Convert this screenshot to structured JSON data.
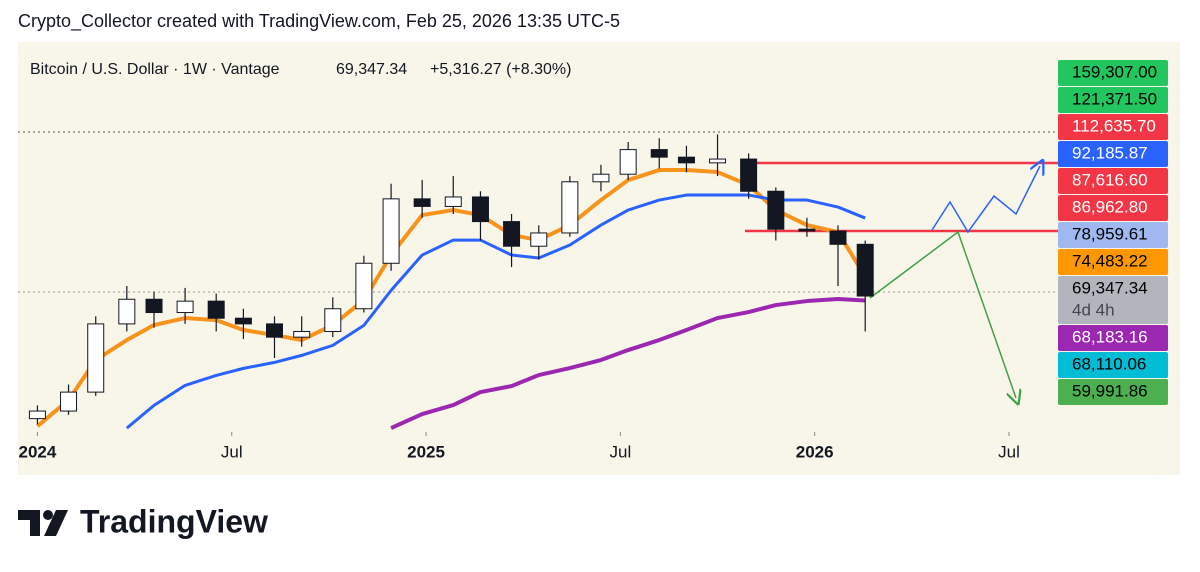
{
  "chart_data": {
    "type": "candlestick",
    "credit": "Crypto_Collector created with TradingView.com, Feb 25, 2026 13:35 UTC-5",
    "title": "Bitcoin / U.S. Dollar · 1W · Vantage",
    "last_price": "69,347.34",
    "change": "+5,316.27 (+8.30%)",
    "brand": "TradingView",
    "x": [
      2024.0,
      2024.08,
      2024.15,
      2024.23,
      2024.3,
      2024.38,
      2024.46,
      2024.53,
      2024.61,
      2024.68,
      2024.76,
      2024.84,
      2024.91,
      2024.99,
      2025.07,
      2025.14,
      2025.22,
      2025.29,
      2025.37,
      2025.45,
      2025.52,
      2025.6,
      2025.67,
      2025.75,
      2025.83,
      2025.9,
      2025.98,
      2026.06,
      2026.13
    ],
    "open": [
      37000,
      39000,
      44000,
      62000,
      68500,
      65000,
      68000,
      63500,
      62000,
      58500,
      60000,
      66000,
      78000,
      95000,
      93000,
      95500,
      89000,
      82500,
      86000,
      99500,
      101500,
      108000,
      106000,
      104500,
      105500,
      97000,
      87000,
      86500,
      83000
    ],
    "high": [
      40500,
      46000,
      64000,
      72000,
      70500,
      71500,
      70000,
      66000,
      64000,
      64000,
      69000,
      80000,
      99000,
      100000,
      101000,
      97000,
      91000,
      88000,
      101000,
      104000,
      110000,
      111000,
      109000,
      112000,
      107000,
      98000,
      90000,
      88000,
      84000
    ],
    "low": [
      35500,
      38000,
      43000,
      60000,
      61000,
      62000,
      60000,
      58000,
      53000,
      56000,
      58500,
      65000,
      76000,
      90000,
      91000,
      84000,
      77000,
      79000,
      85000,
      97000,
      100000,
      103000,
      102000,
      101000,
      95000,
      84000,
      85000,
      72000,
      60000
    ],
    "close": [
      39000,
      44000,
      62000,
      68500,
      65000,
      68000,
      63500,
      62000,
      58500,
      60000,
      66000,
      78000,
      95000,
      93000,
      95500,
      89000,
      82500,
      86000,
      99500,
      101500,
      108000,
      106000,
      104500,
      105500,
      97000,
      87000,
      86500,
      83000,
      69347.34
    ],
    "series": [
      {
        "color": "#f7931a",
        "values": [
          35000,
          41900,
          52460,
          57740,
          61700,
          63540,
          63010,
          60380,
          59060,
          57740,
          61700,
          68290,
          80170,
          90720,
          92040,
          90720,
          85440,
          84120,
          88080,
          94680,
          99960,
          102600,
          102600,
          102070,
          98640,
          92040,
          88080,
          86240,
          74483
        ]
      },
      {
        "color": "#2962ff",
        "values": [
          null,
          null,
          null,
          34500,
          40500,
          45770,
          48410,
          50260,
          51840,
          53690,
          56330,
          61610,
          70850,
          80170,
          84120,
          84120,
          80170,
          79380,
          82810,
          88080,
          92040,
          94680,
          96000,
          96000,
          96000,
          94680,
          94680,
          92830,
          89930
        ]
      },
      {
        "color": "#9c27b0",
        "values": [
          null,
          null,
          null,
          null,
          null,
          null,
          null,
          null,
          null,
          null,
          null,
          null,
          34500,
          38210,
          40580,
          44010,
          45600,
          48500,
          50350,
          52460,
          55100,
          57740,
          60380,
          63540,
          65120,
          66970,
          68030,
          68560,
          68183
        ]
      }
    ],
    "up_color": "#ffffff",
    "down_color": "#131722",
    "xlim": [
      2023.95,
      2026.94
    ],
    "ylim": [
      34000,
      135600
    ],
    "xticks": [
      {
        "value": 2024,
        "label": "2024"
      },
      {
        "value": 2024.5,
        "label": "Jul"
      },
      {
        "value": 2025,
        "label": "2025"
      },
      {
        "value": 2025.5,
        "label": "Jul"
      },
      {
        "value": 2026,
        "label": "2026"
      },
      {
        "value": 2026.5,
        "label": "Jul"
      }
    ],
    "price_labels": [
      {
        "label": "159,307.00",
        "color": "#22c55e",
        "text_color": "#000000"
      },
      {
        "label": "121,371.50",
        "color": "#22c55e",
        "text_color": "#000000"
      },
      {
        "label": "112,635.70",
        "color": "#f23645",
        "text_color": "#ffffff"
      },
      {
        "label": "92,185.87",
        "color": "#2962ff",
        "text_color": "#ffffff"
      },
      {
        "label": "87,616.60",
        "color": "#f23645",
        "text_color": "#ffffff"
      },
      {
        "label": "86,962.80",
        "color": "#f23645",
        "text_color": "#ffffff"
      },
      {
        "label": "78,959.61",
        "color": "#9fb9f0",
        "text_color": "#000000"
      },
      {
        "label": "74,483.22",
        "color": "#ff9800",
        "text_color": "#000000"
      },
      {
        "label": "69,347.34",
        "color": "#b2b5be",
        "text_color": "#000000",
        "sub": "4d 4h"
      },
      {
        "label": "68,183.16",
        "color": "#9c27b0",
        "text_color": "#ffffff"
      },
      {
        "label": "68,110.06",
        "color": "#00bcd4",
        "text_color": "#000000"
      },
      {
        "label": "59,991.86",
        "color": "#4caf50",
        "text_color": "#000000"
      }
    ]
  }
}
